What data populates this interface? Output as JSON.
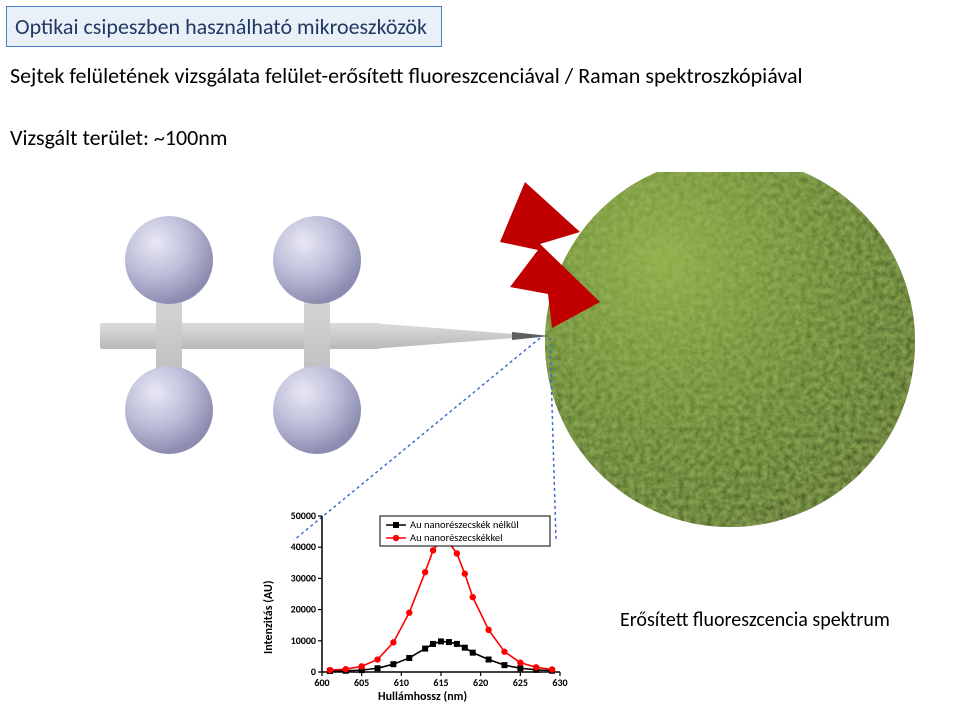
{
  "title": "Optikai csipeszben használható mikroeszközök",
  "subtitle": "Sejtek felületének vizsgálata felület-erősített fluoreszcenciával / Raman spektroszkópiával",
  "area_line": "Vizsgált terület: ~100nm",
  "spectrum_caption": "Erősített fluoreszcencia spektrum",
  "diagram": {
    "background": "#ffffff",
    "probe_body_color": "#b9b9bb",
    "probe_highlight": "#dcdcde",
    "sphere_color_light": "#e8e8f4",
    "sphere_color_mid": "#bcbcd8",
    "sphere_color_dark": "#8c8cb0",
    "cell_color_base": "#4c6d1d",
    "cell_color_light": "#8aab3e",
    "cell_color_dark": "#2f4610",
    "bolt_color": "#c00000",
    "guide_color": "#3d6fc8"
  },
  "chart": {
    "type": "line",
    "xlabel": "Hullámhossz (nm)",
    "ylabel": "Intenzitás (AU)",
    "x_ticks": [
      600,
      605,
      610,
      615,
      620,
      625,
      630
    ],
    "y_ticks": [
      0,
      10000,
      20000,
      30000,
      40000,
      50000
    ],
    "xlim": [
      600,
      630
    ],
    "ylim": [
      0,
      50000
    ],
    "series": [
      {
        "name": "Au nanorészecskék nélkül",
        "color": "#000000",
        "marker": "square",
        "x": [
          601,
          603,
          605,
          607,
          609,
          611,
          613,
          614,
          615,
          616,
          617,
          618,
          619,
          621,
          623,
          625,
          627,
          629
        ],
        "y": [
          300,
          400,
          600,
          1200,
          2500,
          4500,
          7500,
          9000,
          9800,
          9600,
          9000,
          7800,
          6200,
          4000,
          2200,
          1200,
          700,
          400
        ]
      },
      {
        "name": "Au nanorészecskékkel",
        "color": "#ff0000",
        "marker": "circle",
        "x": [
          601,
          603,
          605,
          607,
          609,
          611,
          613,
          614,
          615,
          616,
          617,
          618,
          619,
          621,
          623,
          625,
          627,
          629
        ],
        "y": [
          600,
          900,
          1800,
          4000,
          9500,
          19000,
          32000,
          39000,
          42500,
          41500,
          38000,
          31500,
          24000,
          13500,
          6500,
          3000,
          1500,
          800
        ]
      }
    ],
    "legend_box": {
      "border": "#000000",
      "bg": "#ffffff"
    },
    "font_size_ticks": 10,
    "font_size_labels": 12
  }
}
